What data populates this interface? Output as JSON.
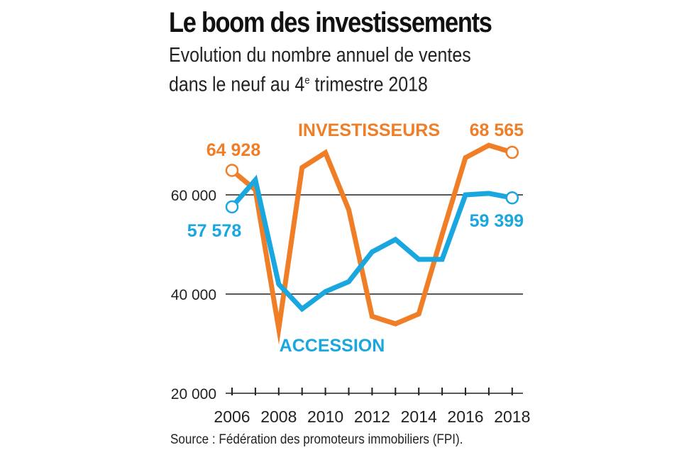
{
  "header": {
    "title": "Le boom des investissements",
    "subtitle_line1": "Evolution du nombre annuel de ventes",
    "subtitle_line2_a": "dans le neuf au 4",
    "subtitle_line2_sup": "e",
    "subtitle_line2_b": " trimestre 2018"
  },
  "source": "Source : Fédération des promoteurs immobiliers (FPI).",
  "colors": {
    "investisseurs": "#f07e26",
    "accession": "#1aa7e0",
    "grid": "#222222"
  },
  "chart_data": {
    "type": "line",
    "x": [
      2006,
      2007,
      2008,
      2009,
      2010,
      2011,
      2012,
      2013,
      2014,
      2015,
      2016,
      2017,
      2018
    ],
    "x_tick_labels": [
      "2006",
      "2008",
      "2010",
      "2012",
      "2014",
      "2016",
      "2018"
    ],
    "y_ticks": [
      20000,
      40000,
      60000
    ],
    "y_tick_labels": [
      "20 000",
      "40 000",
      "60 000"
    ],
    "ylim": [
      20000,
      70000
    ],
    "series": [
      {
        "name": "INVESTISSEURS",
        "color": "#f07e26",
        "values": [
          64928,
          61000,
          33000,
          65500,
          68500,
          57000,
          35500,
          34000,
          36000,
          52000,
          67500,
          70000,
          68565
        ],
        "start_label": "64 928",
        "end_label": "68 565"
      },
      {
        "name": "ACCESSION",
        "color": "#1aa7e0",
        "values": [
          57578,
          63000,
          42000,
          37000,
          40500,
          42500,
          48500,
          51000,
          47000,
          47000,
          60000,
          60300,
          59399
        ],
        "start_label": "57 578",
        "end_label": "59 399"
      }
    ]
  }
}
